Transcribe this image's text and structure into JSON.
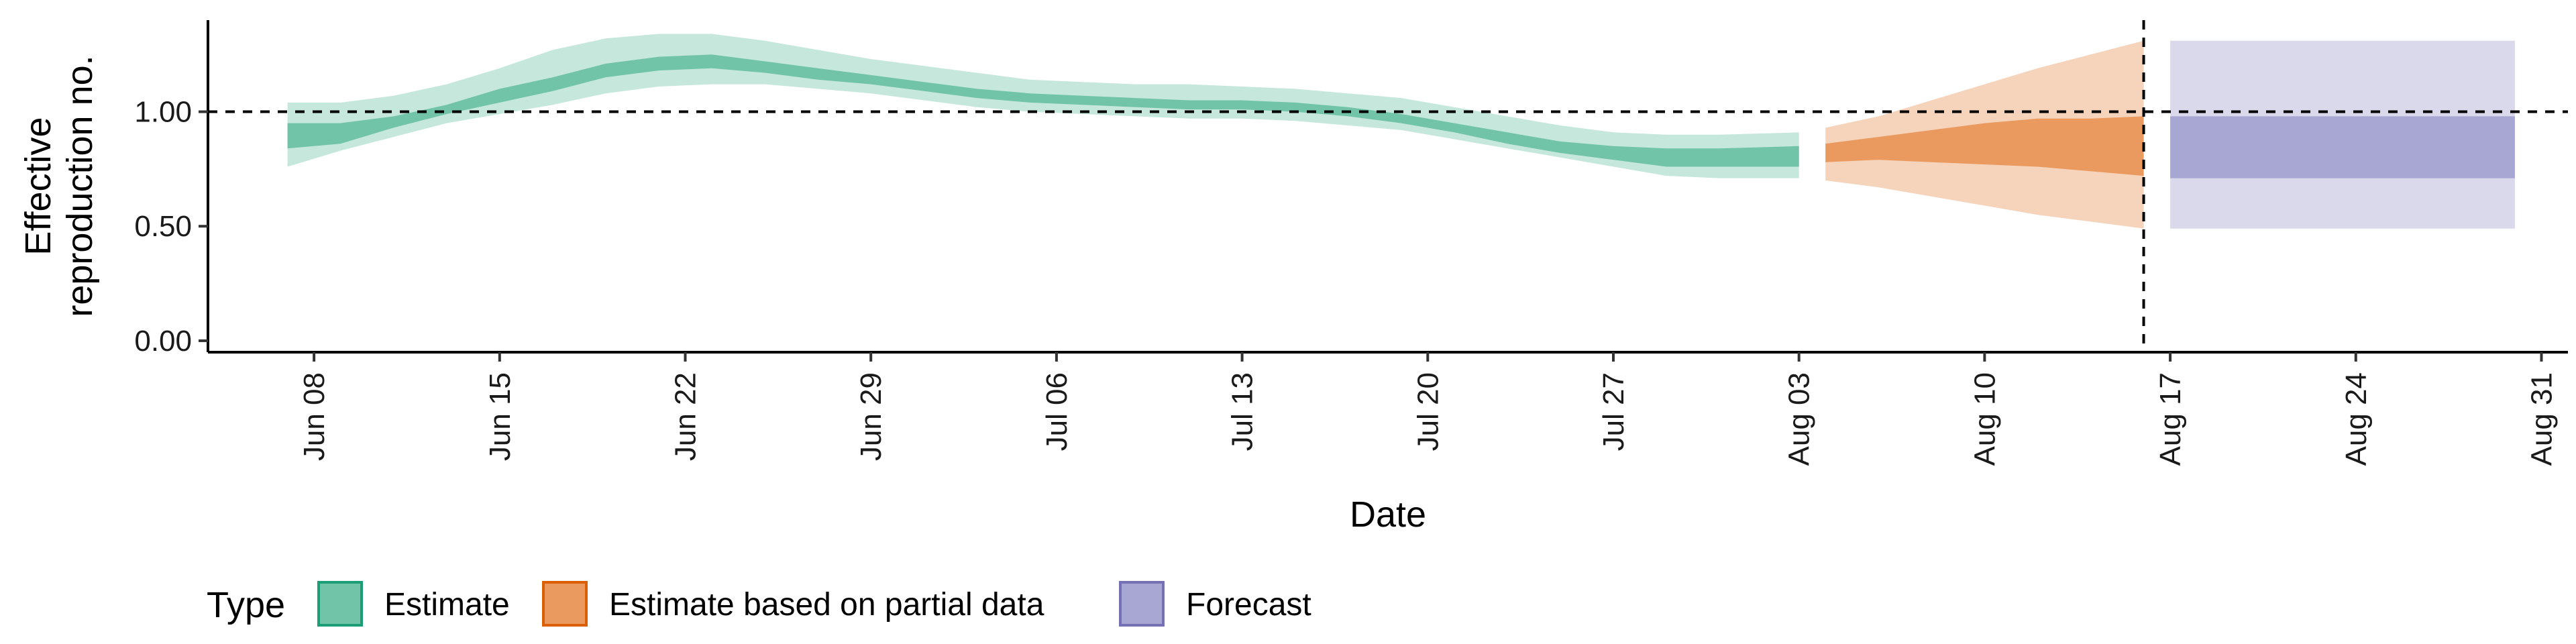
{
  "chart_data": {
    "type": "area",
    "xlabel": "Date",
    "ylabel": [
      "Effective",
      "reproduction no."
    ],
    "ylim": [
      -0.05,
      1.4
    ],
    "xlim": [
      "2020-06-04",
      "2020-09-01"
    ],
    "y_ticks": [
      0.0,
      0.5,
      1.0
    ],
    "y_tick_labels": [
      "0.00",
      "0.50",
      "1.00"
    ],
    "x_ticks": [
      "2020-06-08",
      "2020-06-15",
      "2020-06-22",
      "2020-06-29",
      "2020-07-06",
      "2020-07-13",
      "2020-07-20",
      "2020-07-27",
      "2020-08-03",
      "2020-08-10",
      "2020-08-17",
      "2020-08-24",
      "2020-08-31"
    ],
    "x_tick_labels": [
      "Jun 08",
      "Jun 15",
      "Jun 22",
      "Jun 29",
      "Jul 06",
      "Jul 13",
      "Jul 20",
      "Jul 27",
      "Aug 03",
      "Aug 10",
      "Aug 17",
      "Aug 24",
      "Aug 31"
    ],
    "reference_line_y": 1.0,
    "reference_line_x": "2020-08-16",
    "grid": false,
    "legend": {
      "title": "Type",
      "position": "bottom",
      "entries": [
        {
          "label": "Estimate",
          "fill": "#72c4a8",
          "border": "#1b9e77"
        },
        {
          "label": "Estimate based on partial data",
          "fill": "#ea9a5e",
          "border": "#d95f02"
        },
        {
          "label": "Forecast",
          "fill": "#a8a6d2",
          "border": "#7570b3"
        }
      ]
    },
    "series": [
      {
        "name": "Estimate",
        "inner_color": "#72c4a8",
        "outer_color": "#c6e8dc",
        "x": [
          "2020-06-07",
          "2020-06-09",
          "2020-06-11",
          "2020-06-13",
          "2020-06-15",
          "2020-06-17",
          "2020-06-19",
          "2020-06-21",
          "2020-06-23",
          "2020-06-25",
          "2020-06-27",
          "2020-06-29",
          "2020-07-01",
          "2020-07-03",
          "2020-07-05",
          "2020-07-07",
          "2020-07-09",
          "2020-07-11",
          "2020-07-13",
          "2020-07-15",
          "2020-07-17",
          "2020-07-19",
          "2020-07-21",
          "2020-07-23",
          "2020-07-25",
          "2020-07-27",
          "2020-07-29",
          "2020-07-31",
          "2020-08-03"
        ],
        "lower_outer": [
          0.76,
          0.83,
          0.89,
          0.95,
          0.99,
          1.03,
          1.08,
          1.11,
          1.12,
          1.12,
          1.1,
          1.08,
          1.05,
          1.02,
          1.0,
          0.99,
          0.98,
          0.97,
          0.97,
          0.96,
          0.94,
          0.92,
          0.88,
          0.84,
          0.8,
          0.76,
          0.72,
          0.71,
          0.71
        ],
        "lower_inner": [
          0.84,
          0.86,
          0.93,
          0.99,
          1.04,
          1.09,
          1.15,
          1.18,
          1.19,
          1.17,
          1.14,
          1.12,
          1.09,
          1.06,
          1.04,
          1.03,
          1.02,
          1.01,
          1.01,
          1.0,
          0.98,
          0.95,
          0.91,
          0.86,
          0.82,
          0.79,
          0.76,
          0.76,
          0.76
        ],
        "upper_inner": [
          0.95,
          0.95,
          0.98,
          1.03,
          1.1,
          1.15,
          1.21,
          1.24,
          1.25,
          1.22,
          1.19,
          1.16,
          1.13,
          1.1,
          1.08,
          1.07,
          1.06,
          1.05,
          1.05,
          1.04,
          1.02,
          0.99,
          0.95,
          0.91,
          0.87,
          0.85,
          0.84,
          0.84,
          0.85
        ],
        "upper_outer": [
          1.04,
          1.04,
          1.07,
          1.12,
          1.19,
          1.27,
          1.32,
          1.34,
          1.34,
          1.31,
          1.27,
          1.23,
          1.2,
          1.17,
          1.14,
          1.13,
          1.12,
          1.12,
          1.11,
          1.1,
          1.08,
          1.06,
          1.02,
          0.98,
          0.94,
          0.91,
          0.9,
          0.9,
          0.91
        ]
      },
      {
        "name": "Estimate based on partial data",
        "inner_color": "#ea9a5e",
        "outer_color": "#f6d3bb",
        "x": [
          "2020-08-04",
          "2020-08-06",
          "2020-08-08",
          "2020-08-10",
          "2020-08-12",
          "2020-08-14",
          "2020-08-16"
        ],
        "lower_outer": [
          0.7,
          0.67,
          0.63,
          0.59,
          0.55,
          0.52,
          0.49
        ],
        "lower_inner": [
          0.78,
          0.79,
          0.78,
          0.77,
          0.76,
          0.74,
          0.72
        ],
        "upper_inner": [
          0.86,
          0.89,
          0.92,
          0.95,
          0.97,
          0.97,
          0.98
        ],
        "upper_outer": [
          0.93,
          0.98,
          1.05,
          1.12,
          1.19,
          1.25,
          1.31
        ]
      },
      {
        "name": "Forecast",
        "inner_color": "#a8a6d2",
        "outer_color": "#dad9ec",
        "x": [
          "2020-08-17",
          "2020-08-30"
        ],
        "lower_outer": [
          0.49,
          0.49
        ],
        "lower_inner": [
          0.71,
          0.71
        ],
        "upper_inner": [
          0.98,
          0.98
        ],
        "upper_outer": [
          1.31,
          1.31
        ]
      }
    ]
  }
}
